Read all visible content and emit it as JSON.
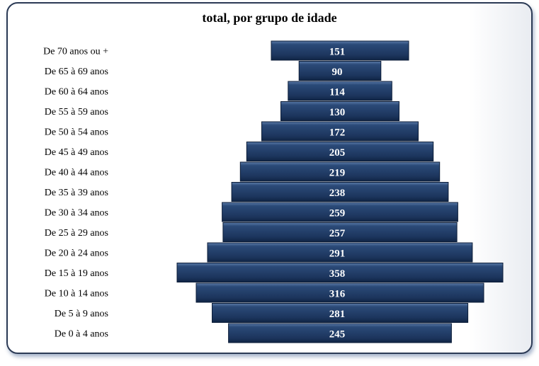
{
  "chart_data": {
    "type": "bar",
    "orientation": "horizontal-centered",
    "title": "total, por grupo de idade",
    "categories": [
      "De 70 anos ou +",
      "De 65 à 69 anos",
      "De 60 à 64 anos",
      "De 55 à 59 anos",
      "De 50 à 54 anos",
      "De 45 à 49 anos",
      "De 40 à 44 anos",
      "De 35 à 39 anos",
      "De 30 à 34 anos",
      "De 25 à 29 anos",
      "De 20 à 24 anos",
      "De 15 à 19 anos",
      "De 10 à 14 anos",
      "De 5 à 9 anos",
      "De 0 à 4 anos"
    ],
    "values": [
      151,
      90,
      114,
      130,
      172,
      205,
      219,
      238,
      259,
      257,
      291,
      358,
      316,
      281,
      245
    ],
    "bar_color": "#1f3a64",
    "grid": false,
    "legend": "none"
  }
}
